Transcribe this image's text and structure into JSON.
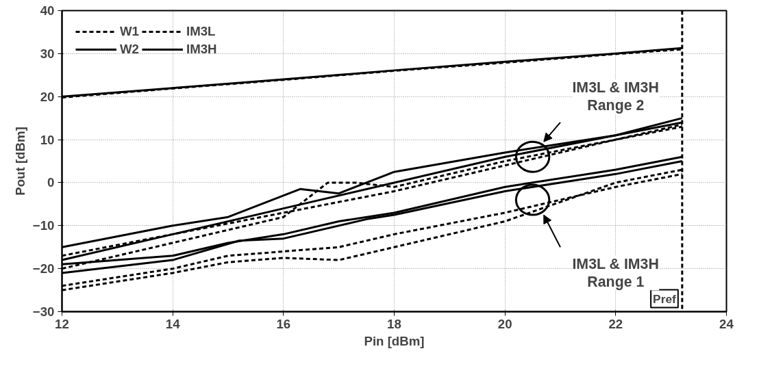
{
  "chart_data": {
    "type": "line",
    "xlabel": "Pin [dBm]",
    "ylabel": "Pout [dBm]",
    "xlim": [
      12,
      24
    ],
    "xticks": [
      12,
      14,
      16,
      18,
      20,
      22,
      24
    ],
    "ylim": [
      -30,
      40
    ],
    "yticks": [
      -30,
      -20,
      -10,
      0,
      10,
      20,
      30,
      40
    ],
    "grid": true,
    "legend": "top left",
    "marker": "none",
    "series": [
      {
        "name": "W1",
        "color": "#000000",
        "line_style": "dashed",
        "x": [
          12,
          14,
          16,
          18,
          20,
          22,
          23.2
        ],
        "values": [
          19.8,
          21.9,
          23.9,
          26,
          27.9,
          29.9,
          31
        ]
      },
      {
        "name": "W2",
        "color": "#000000",
        "line_style": "solid",
        "x": [
          12,
          14,
          16,
          18,
          20,
          22,
          23.2
        ],
        "values": [
          20,
          22,
          24,
          26.1,
          28.1,
          30,
          31.3
        ]
      },
      {
        "name": "IM3L",
        "color": "#000000",
        "line_style": "dashed",
        "x": [
          12,
          14,
          16,
          18,
          20,
          22,
          23.2
        ],
        "values": [
          -17,
          -12,
          -7,
          -2,
          4,
          10,
          13
        ]
      },
      {
        "name": "IM3H",
        "color": "#000000",
        "line_style": "solid",
        "x": [
          12,
          14,
          15,
          16.3,
          17,
          18,
          20,
          22,
          23.2
        ],
        "values": [
          -15,
          -10,
          -8,
          -1.5,
          -2.5,
          2.5,
          7,
          11,
          15
        ]
      },
      {
        "color": "#000000",
        "line_style": "solid",
        "x": [
          12,
          14,
          16,
          18,
          20,
          22,
          23.2
        ],
        "values": [
          -18,
          -12,
          -6,
          0,
          6,
          11,
          14
        ]
      },
      {
        "color": "#000000",
        "line_style": "dashed",
        "x": [
          12,
          14,
          16,
          16.8,
          17.3,
          18,
          20,
          22,
          23.2
        ],
        "values": [
          -20,
          -14,
          -8,
          0,
          0,
          -1,
          5,
          10,
          13.5
        ]
      },
      {
        "color": "#000000",
        "line_style": "solid",
        "x": [
          12,
          14,
          15.2,
          16,
          17.5,
          18,
          20,
          22,
          23.2
        ],
        "values": [
          -21,
          -18,
          -13.5,
          -13,
          -8.5,
          -7.5,
          -2,
          2,
          5
        ]
      },
      {
        "color": "#000000",
        "line_style": "solid",
        "x": [
          12,
          14,
          15,
          16,
          17,
          18,
          20,
          22,
          23.2
        ],
        "values": [
          -19,
          -17,
          -14,
          -12,
          -9,
          -7,
          -1,
          3,
          6
        ]
      },
      {
        "color": "#000000",
        "line_style": "dashed",
        "x": [
          12,
          14,
          15,
          16,
          17,
          18,
          20,
          22,
          23.2
        ],
        "values": [
          -24,
          -20,
          -17,
          -16,
          -15,
          -12,
          -7,
          -1,
          2
        ]
      },
      {
        "color": "#000000",
        "line_style": "dashed",
        "x": [
          12,
          14,
          15,
          16,
          17,
          18,
          20,
          22,
          23.2
        ],
        "values": [
          -25,
          -21,
          -18.5,
          -17.5,
          -18,
          -15,
          -9,
          0,
          3
        ]
      }
    ],
    "ref_lines": [
      {
        "axis": "x",
        "value": 23.2,
        "label": "Pref",
        "color": "#000000",
        "line_style": "dashed"
      }
    ],
    "annotations": [
      "IM3L & IM3H\nRange 2",
      "IM3L & IM3H\nRange 1"
    ]
  }
}
